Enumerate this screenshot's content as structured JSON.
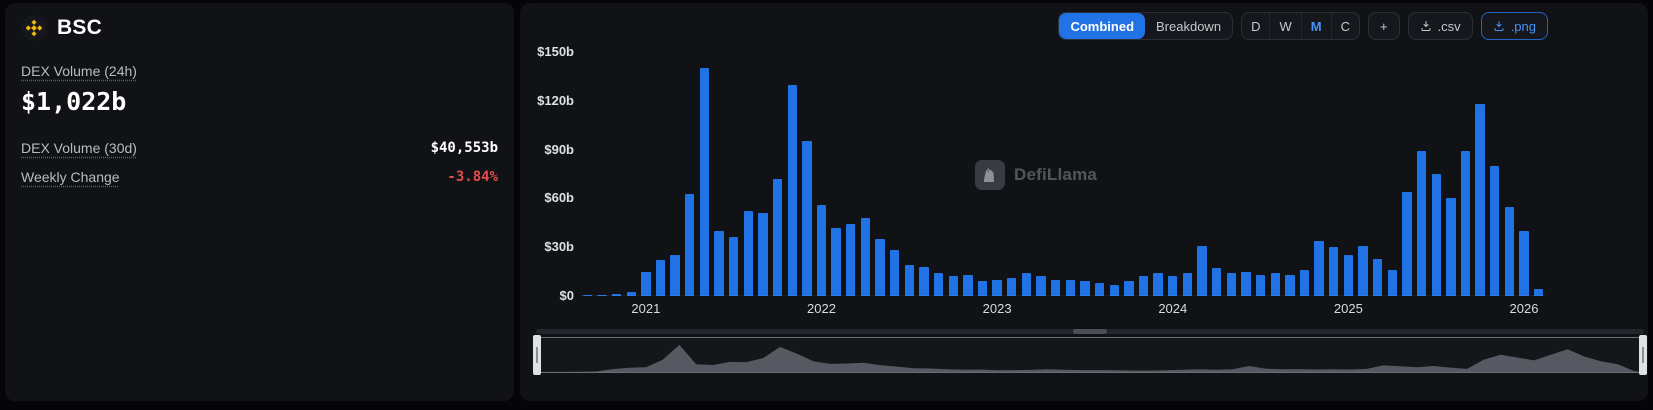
{
  "left_panel": {
    "chain_name": "BSC",
    "dex24_label": "DEX Volume (24h)",
    "dex24_value": "$1,022b",
    "dex30_label": "DEX Volume (30d)",
    "dex30_value": "$40,553b",
    "weekly_label": "Weekly Change",
    "weekly_value": "-3.84%"
  },
  "toolbar": {
    "combined_label": "Combined",
    "breakdown_label": "Breakdown",
    "interval_d": "D",
    "interval_w": "W",
    "interval_m": "M",
    "interval_c": "C",
    "active_view": "Combined",
    "active_interval": "M",
    "add_label": "+",
    "csv_label": ".csv",
    "png_label": ".png"
  },
  "watermark": {
    "text": "DefiLlama"
  },
  "colors": {
    "accent": "#2172e5",
    "bar": "#2172e5",
    "negative": "#e24c4c",
    "bnb_gold": "#f0b90b"
  },
  "chart_data": {
    "type": "bar",
    "ylim": [
      0,
      150
    ],
    "grid": false,
    "legend": false,
    "bar_color": "#2172e5",
    "y_ticks": [
      {
        "label": "$150b",
        "value": 150
      },
      {
        "label": "$120b",
        "value": 120
      },
      {
        "label": "$90b",
        "value": 90
      },
      {
        "label": "$60b",
        "value": 60
      },
      {
        "label": "$30b",
        "value": 30
      },
      {
        "label": "$0",
        "value": 0
      }
    ],
    "x_tick_labels": [
      "2021",
      "2022",
      "2023",
      "2024",
      "2025",
      "2026"
    ],
    "categories": [
      "2020-09",
      "2020-10",
      "2020-11",
      "2020-12",
      "2021-01",
      "2021-02",
      "2021-03",
      "2021-04",
      "2021-05",
      "2021-06",
      "2021-07",
      "2021-08",
      "2021-09",
      "2021-10",
      "2021-11",
      "2021-12",
      "2022-01",
      "2022-02",
      "2022-03",
      "2022-04",
      "2022-05",
      "2022-06",
      "2022-07",
      "2022-08",
      "2022-09",
      "2022-10",
      "2022-11",
      "2022-12",
      "2023-01",
      "2023-02",
      "2023-03",
      "2023-04",
      "2023-05",
      "2023-06",
      "2023-07",
      "2023-08",
      "2023-09",
      "2023-10",
      "2023-11",
      "2023-12",
      "2024-01",
      "2024-02",
      "2024-03",
      "2024-04",
      "2024-05",
      "2024-06",
      "2024-07",
      "2024-08",
      "2024-09",
      "2024-10",
      "2024-11",
      "2024-12",
      "2025-01",
      "2025-02",
      "2025-03",
      "2025-04",
      "2025-05",
      "2025-06",
      "2025-07",
      "2025-08",
      "2025-09",
      "2025-10",
      "2025-11",
      "2025-12",
      "2026-01",
      "2026-02"
    ],
    "values": [
      0.3,
      0.5,
      1,
      2.5,
      15,
      22,
      25,
      63,
      140,
      40,
      36,
      52,
      51,
      72,
      130,
      95,
      56,
      42,
      44,
      48,
      35,
      28,
      19,
      18,
      14,
      12,
      13,
      9,
      10,
      11,
      14,
      12,
      10,
      10,
      9,
      8,
      7,
      9,
      12,
      14,
      12,
      14,
      31,
      17,
      14,
      15,
      13,
      14,
      13,
      16,
      34,
      30,
      25,
      31,
      23,
      16,
      64,
      89,
      75,
      60,
      89,
      118,
      80,
      55,
      40,
      4
    ]
  }
}
